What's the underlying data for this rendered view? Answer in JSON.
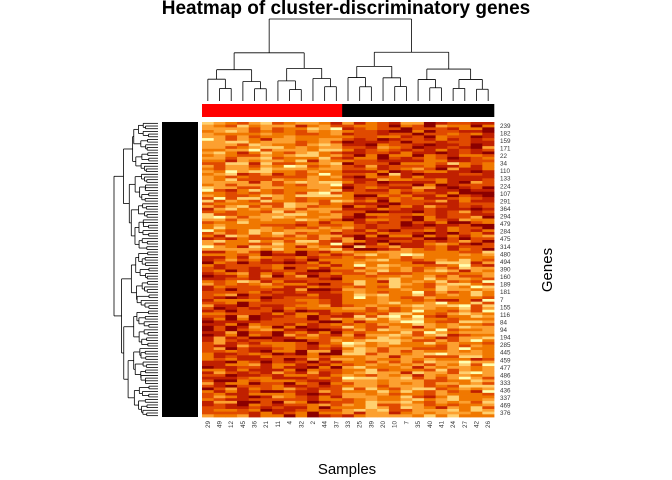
{
  "chart_data": {
    "type": "heatmap",
    "title": "Heatmap of cluster-discriminatory genes",
    "xlabel": "Samples",
    "ylabel": "Genes",
    "column_labels": [
      "29",
      "49",
      "12",
      "45",
      "36",
      "21",
      "11",
      "4",
      "32",
      "2",
      "44",
      "37",
      "33",
      "25",
      "39",
      "20",
      "10",
      "7",
      "35",
      "40",
      "41",
      "24",
      "27",
      "42",
      "26"
    ],
    "row_labels": [
      "239",
      "182",
      "159",
      "171",
      "22",
      "34",
      "110",
      "133",
      "224",
      "107",
      "291",
      "364",
      "294",
      "479",
      "284",
      "475",
      "314",
      "480",
      "494",
      "390",
      "160",
      "189",
      "181",
      "7",
      "155",
      "116",
      "84",
      "94",
      "194",
      "285",
      "445",
      "459",
      "477",
      "486",
      "333",
      "436",
      "337",
      "469",
      "376"
    ],
    "column_groups": [
      {
        "name": "",
        "count": 12,
        "color": "#ff0000"
      },
      {
        "name": "",
        "count": 13,
        "color": "#000000"
      }
    ],
    "row_blocks_from_top": [
      {
        "fraction": 0.44,
        "high_in_column_group": 0
      },
      {
        "fraction": 0.56,
        "high_in_column_group": 1
      }
    ],
    "color_scale": [
      "#8b0000",
      "#c02000",
      "#e04a00",
      "#f07800",
      "#fca030",
      "#ffd070",
      "#ffffb0"
    ],
    "color_scale_note": "dark red = low expression, light yellow = high expression",
    "row_dendrogram": true,
    "column_dendrogram": true,
    "grid": false
  }
}
